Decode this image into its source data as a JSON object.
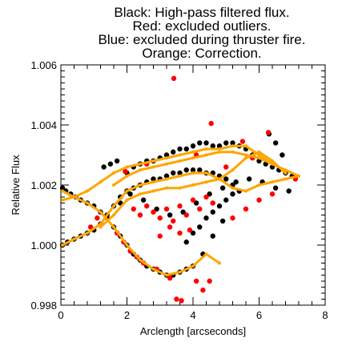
{
  "chart_data": {
    "type": "scatter",
    "title_lines": [
      "Black: High-pass filtered flux.",
      "Red: excluded outliers.",
      "Blue: excluded during thruster fire.",
      "Orange: Correction."
    ],
    "xlabel": "Arclength [arcseconds]",
    "ylabel": "Relative Flux",
    "xlim": [
      0,
      8
    ],
    "ylim": [
      0.998,
      1.006
    ],
    "x_ticks": [
      "0",
      "2",
      "4",
      "6",
      "8"
    ],
    "y_ticks": [
      "0.998",
      "1.000",
      "1.002",
      "1.004",
      "1.006"
    ],
    "grid": false,
    "colors": {
      "black": "#000000",
      "red": "#ff0000",
      "orange": "#ffa500"
    },
    "series": [
      {
        "color": "black",
        "points": [
          [
            0.05,
            1.0019
          ],
          [
            0.15,
            1.0018
          ],
          [
            0.3,
            1.0017
          ],
          [
            0.45,
            1.0016
          ],
          [
            0.6,
            1.0015
          ],
          [
            0.8,
            1.0014
          ],
          [
            1.0,
            1.0013
          ],
          [
            1.2,
            1.0011
          ],
          [
            1.4,
            1.0009
          ],
          [
            1.6,
            1.0006
          ],
          [
            1.8,
            1.0003
          ],
          [
            2.0,
            1.0
          ],
          [
            2.2,
            0.9997
          ],
          [
            2.4,
            0.9995
          ],
          [
            2.6,
            0.9993
          ],
          [
            2.8,
            0.9992
          ],
          [
            3.0,
            0.9991
          ],
          [
            3.2,
            0.999
          ],
          [
            3.4,
            0.999
          ],
          [
            3.6,
            0.9991
          ],
          [
            3.8,
            0.9992
          ],
          [
            4.0,
            0.9993
          ],
          [
            4.3,
            0.9997
          ],
          [
            4.6,
            1.0003
          ],
          [
            4.9,
            1.0008
          ],
          [
            0.05,
            1.0
          ],
          [
            0.2,
            1.0001
          ],
          [
            0.4,
            1.0002
          ],
          [
            0.6,
            1.0003
          ],
          [
            0.8,
            1.0004
          ],
          [
            1.0,
            1.0005
          ],
          [
            1.2,
            1.0007
          ],
          [
            1.4,
            1.001
          ],
          [
            1.6,
            1.0013
          ],
          [
            1.8,
            1.0016
          ],
          [
            2.0,
            1.0018
          ],
          [
            2.2,
            1.0019
          ],
          [
            2.4,
            1.002
          ],
          [
            2.6,
            1.0021
          ],
          [
            2.8,
            1.0022
          ],
          [
            3.0,
            1.0022
          ],
          [
            3.2,
            1.0023
          ],
          [
            3.4,
            1.0024
          ],
          [
            3.6,
            1.0024
          ],
          [
            3.8,
            1.0025
          ],
          [
            4.0,
            1.0025
          ],
          [
            4.2,
            1.0025
          ],
          [
            4.4,
            1.0024
          ],
          [
            4.6,
            1.0024
          ],
          [
            4.8,
            1.0023
          ],
          [
            5.0,
            1.0022
          ],
          [
            5.2,
            1.002
          ],
          [
            5.4,
            1.0018
          ],
          [
            2.0,
            1.0024
          ],
          [
            2.2,
            1.0026
          ],
          [
            2.4,
            1.0027
          ],
          [
            2.6,
            1.0028
          ],
          [
            2.8,
            1.0028
          ],
          [
            3.0,
            1.0029
          ],
          [
            3.2,
            1.003
          ],
          [
            3.4,
            1.0031
          ],
          [
            3.6,
            1.0032
          ],
          [
            3.8,
            1.0032
          ],
          [
            4.0,
            1.0033
          ],
          [
            4.2,
            1.0034
          ],
          [
            4.4,
            1.0034
          ],
          [
            4.6,
            1.0033
          ],
          [
            4.8,
            1.0033
          ],
          [
            5.0,
            1.0034
          ],
          [
            5.2,
            1.0034
          ],
          [
            5.4,
            1.0033
          ],
          [
            5.6,
            1.0032
          ],
          [
            5.8,
            1.003
          ],
          [
            6.0,
            1.0028
          ],
          [
            6.2,
            1.0027
          ],
          [
            6.4,
            1.0026
          ],
          [
            6.6,
            1.0025
          ],
          [
            6.8,
            1.0024
          ],
          [
            7.0,
            1.0023
          ],
          [
            1.8,
            1.0014
          ],
          [
            2.1,
            1.0017
          ],
          [
            2.5,
            1.0015
          ],
          [
            2.9,
            1.0012
          ],
          [
            3.3,
            1.001
          ],
          [
            3.7,
            1.0011
          ],
          [
            4.1,
            1.0014
          ],
          [
            4.5,
            1.0017
          ],
          [
            4.9,
            1.0019
          ],
          [
            5.3,
            1.0021
          ],
          [
            5.7,
            1.0022
          ],
          [
            6.1,
            1.0021
          ],
          [
            6.5,
            1.0019
          ],
          [
            6.9,
            1.0018
          ],
          [
            3.8,
            1.0001
          ],
          [
            4.0,
            1.0004
          ],
          [
            4.2,
            1.0006
          ],
          [
            4.4,
            1.0009
          ],
          [
            4.6,
            1.0011
          ],
          [
            4.8,
            1.0013
          ],
          [
            5.0,
            1.0015
          ],
          [
            5.2,
            1.0017
          ],
          [
            5.4,
            1.0018
          ],
          [
            1.3,
            1.0026
          ],
          [
            1.5,
            1.0027
          ],
          [
            1.7,
            1.0028
          ],
          [
            6.3,
            1.0037
          ],
          [
            6.5,
            1.0034
          ],
          [
            6.7,
            1.003
          ]
        ]
      },
      {
        "color": "red",
        "points": [
          [
            3.42,
            1.00555
          ],
          [
            4.55,
            1.00405
          ],
          [
            6.28,
            1.00375
          ],
          [
            5.5,
            1.00345
          ],
          [
            1.95,
            1.00245
          ],
          [
            4.1,
            1.003
          ],
          [
            2.6,
            1.0027
          ],
          [
            2.2,
            1.0012
          ],
          [
            2.4,
            1.001
          ],
          [
            2.6,
            1.0013
          ],
          [
            2.8,
            1.0011
          ],
          [
            3.0,
            1.0009
          ],
          [
            3.2,
            1.0012
          ],
          [
            3.4,
            1.0008
          ],
          [
            3.6,
            1.0013
          ],
          [
            3.8,
            1.001
          ],
          [
            4.0,
            1.0015
          ],
          [
            4.2,
            1.0012
          ],
          [
            4.4,
            1.0016
          ],
          [
            4.6,
            1.0014
          ],
          [
            1.7,
            1.0004
          ],
          [
            1.9,
            1.0001
          ],
          [
            2.1,
            0.9998
          ],
          [
            2.3,
            0.9996
          ],
          [
            2.5,
            0.9994
          ],
          [
            2.9,
            0.9992
          ],
          [
            3.3,
            0.9989
          ],
          [
            3.5,
            0.9982
          ],
          [
            3.65,
            0.99815
          ],
          [
            4.1,
            0.9988
          ],
          [
            4.3,
            0.9985
          ],
          [
            4.5,
            0.9988
          ],
          [
            3.0,
            1.0003
          ],
          [
            3.3,
            1.0006
          ],
          [
            3.6,
            1.0004
          ],
          [
            3.9,
            1.0005
          ],
          [
            5.2,
            1.0009
          ],
          [
            5.6,
            1.0012
          ],
          [
            6.0,
            1.0015
          ],
          [
            6.4,
            1.0017
          ],
          [
            0.9,
            1.0006
          ],
          [
            1.1,
            1.0009
          ],
          [
            5.0,
            1.0026
          ],
          [
            5.8,
            1.0029
          ],
          [
            7.1,
            1.0022
          ]
        ]
      }
    ],
    "correction_curves": [
      {
        "color": "orange",
        "x": [
          0.05,
          0.4,
          0.8,
          1.2,
          1.6,
          2.0,
          2.4,
          2.8,
          3.2,
          3.6,
          4.0,
          4.4,
          4.8
        ],
        "y": [
          1.0018,
          1.0016,
          1.0014,
          1.0011,
          1.0006,
          1.0,
          0.9995,
          0.9992,
          0.999,
          0.9991,
          0.9993,
          0.9997,
          0.9994
        ]
      },
      {
        "color": "orange",
        "x": [
          0.05,
          0.4,
          0.8,
          1.2,
          1.6,
          2.0,
          2.4,
          2.8,
          3.2,
          3.6,
          4.0,
          4.4,
          4.8,
          5.2,
          5.6,
          6.0,
          6.4,
          6.8,
          7.2
        ],
        "y": [
          1.0,
          1.0002,
          1.0004,
          1.0007,
          1.0013,
          1.0018,
          1.002,
          1.0021,
          1.0022,
          1.0023,
          1.0024,
          1.0024,
          1.0022,
          1.0019,
          1.0018,
          1.002,
          1.0021,
          1.0022,
          1.0023
        ]
      },
      {
        "color": "orange",
        "x": [
          0.05,
          0.4,
          0.8,
          1.2,
          1.6,
          2.0,
          2.4,
          2.8,
          3.2,
          3.6,
          4.0,
          4.4,
          4.8,
          5.2,
          5.6,
          6.0,
          6.4,
          6.8,
          7.2
        ],
        "y": [
          1.0015,
          1.0016,
          1.0018,
          1.0021,
          1.0024,
          1.0026,
          1.0027,
          1.0028,
          1.0029,
          1.003,
          1.0031,
          1.0032,
          1.0032,
          1.0033,
          1.0033,
          1.003,
          1.0027,
          1.0025,
          1.0023
        ]
      },
      {
        "color": "orange",
        "x": [
          1.2,
          1.6,
          2.0,
          2.4,
          2.8,
          3.2,
          3.6,
          4.0,
          4.4,
          4.8,
          5.2,
          5.6,
          6.0,
          6.4,
          6.8
        ],
        "y": [
          1.0006,
          1.001,
          1.0015,
          1.0017,
          1.0018,
          1.0019,
          1.0019,
          1.002,
          1.0021,
          1.0022,
          1.0025,
          1.0029,
          1.0031,
          1.0028,
          1.0024
        ]
      },
      {
        "color": "orange",
        "x": [
          1.6,
          2.0,
          2.4,
          2.8,
          3.2,
          3.6,
          4.0,
          4.4,
          4.8,
          5.2,
          5.6,
          6.0,
          6.4
        ],
        "y": [
          1.002,
          1.0023,
          1.0025,
          1.0026,
          1.0027,
          1.0028,
          1.0029,
          1.003,
          1.0031,
          1.0031,
          1.003,
          1.0029,
          1.0027
        ]
      }
    ]
  }
}
